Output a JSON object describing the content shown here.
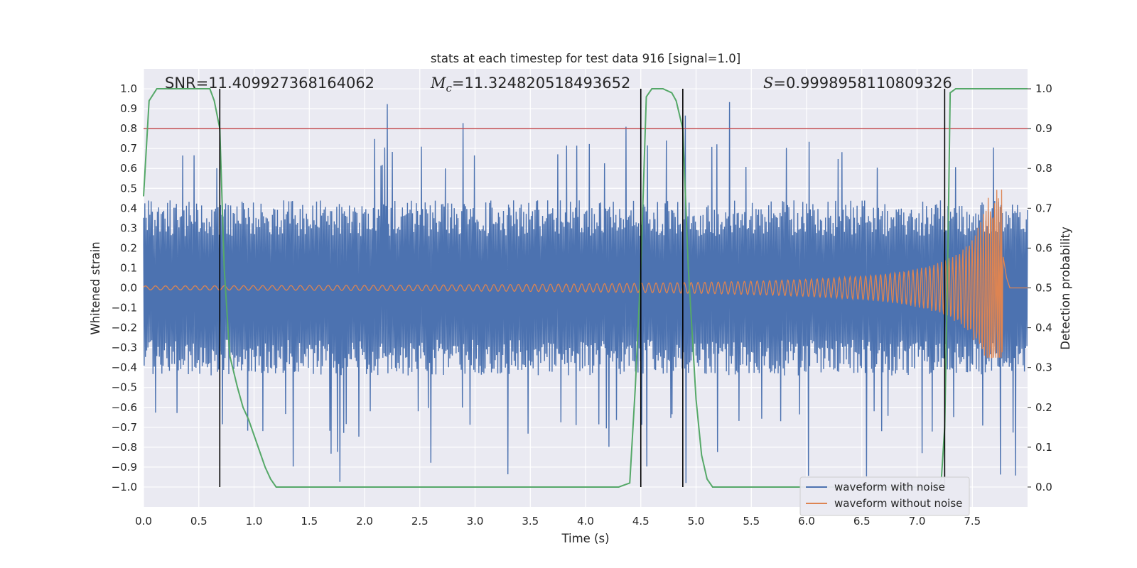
{
  "chart_data": {
    "type": "line",
    "title": "stats at each timestep for test data 916 [signal=1.0]",
    "xlabel": "Time (s)",
    "ylabel": "Whitened strain",
    "ylabel_right": "Detection probability",
    "xlim": [
      0.0,
      8.0
    ],
    "ylim": [
      -1.1,
      1.1
    ],
    "ylim_right": [
      -0.05,
      1.05
    ],
    "grid": true,
    "legend_position": "lower right",
    "x_ticks": [
      "0.0",
      "0.5",
      "1.0",
      "1.5",
      "2.0",
      "2.5",
      "3.0",
      "3.5",
      "4.0",
      "4.5",
      "5.0",
      "5.5",
      "6.0",
      "6.5",
      "7.0",
      "7.5"
    ],
    "y_ticks": [
      "1.0",
      "0.9",
      "0.8",
      "0.7",
      "0.6",
      "0.5",
      "0.4",
      "0.3",
      "0.2",
      "0.1",
      "0.0",
      "−0.1",
      "−0.2",
      "−0.3",
      "−0.4",
      "−0.5",
      "−0.6",
      "−0.7",
      "−0.8",
      "−0.9",
      "−1.0"
    ],
    "y_tick_values": [
      1.0,
      0.9,
      0.8,
      0.7,
      0.6,
      0.5,
      0.4,
      0.3,
      0.2,
      0.1,
      0.0,
      -0.1,
      -0.2,
      -0.3,
      -0.4,
      -0.5,
      -0.6,
      -0.7,
      -0.8,
      -0.9,
      -1.0
    ],
    "y2_ticks": [
      "1.0",
      "0.9",
      "0.8",
      "0.7",
      "0.6",
      "0.5",
      "0.4",
      "0.3",
      "0.2",
      "0.1",
      "0.0"
    ],
    "y2_tick_values": [
      1.0,
      0.9,
      0.8,
      0.7,
      0.6,
      0.5,
      0.4,
      0.3,
      0.2,
      0.1,
      0.0
    ],
    "annotations": {
      "snr": "SNR=11.409927368164062",
      "mc_symbol": "M",
      "mc_sub": "c",
      "mc_value": "=11.324820518493652",
      "s_symbol": "S",
      "s_value": "=0.9998958110809326"
    },
    "threshold": {
      "value": 0.9,
      "axis": "right",
      "color": "#c44e52"
    },
    "vertical_lines": [
      0.69,
      4.5,
      4.88,
      7.25
    ],
    "series": [
      {
        "name": "waveform with noise",
        "color": "#4c72b0",
        "description_kind": "noise band",
        "typical_amplitude": 0.4,
        "peak_amplitude": 0.98
      },
      {
        "name": "waveform without noise",
        "color": "#dd8452",
        "kind": "chirp",
        "start_amplitude": 0.01,
        "peak_amplitude": 0.5,
        "peak_time": 7.78,
        "min_value": -0.35
      },
      {
        "name": "detection probability",
        "color": "#55a868",
        "axis": "right",
        "x": [
          0.0,
          0.05,
          0.12,
          0.2,
          0.4,
          0.6,
          0.64,
          0.69,
          0.73,
          0.78,
          0.85,
          0.9,
          0.95,
          1.0,
          1.05,
          1.1,
          1.15,
          1.2,
          1.3,
          1.5,
          2.0,
          3.0,
          4.0,
          4.3,
          4.4,
          4.45,
          4.5,
          4.55,
          4.6,
          4.7,
          4.78,
          4.82,
          4.88,
          4.93,
          5.0,
          5.05,
          5.1,
          5.15,
          5.2,
          5.3,
          6.0,
          7.0,
          7.18,
          7.22,
          7.25,
          7.28,
          7.3,
          7.35,
          7.5,
          8.0
        ],
        "y": [
          0.73,
          0.97,
          1.0,
          1.0,
          1.0,
          1.0,
          0.97,
          0.9,
          0.55,
          0.33,
          0.25,
          0.2,
          0.17,
          0.13,
          0.09,
          0.05,
          0.02,
          0.0,
          0.0,
          0.0,
          0.0,
          0.0,
          0.0,
          0.0,
          0.01,
          0.25,
          0.55,
          0.98,
          1.0,
          1.0,
          0.99,
          0.97,
          0.9,
          0.55,
          0.22,
          0.08,
          0.02,
          0.0,
          0.0,
          0.0,
          0.0,
          0.0,
          0.0,
          0.02,
          0.15,
          0.6,
          0.99,
          1.0,
          1.0,
          1.0
        ]
      }
    ]
  }
}
